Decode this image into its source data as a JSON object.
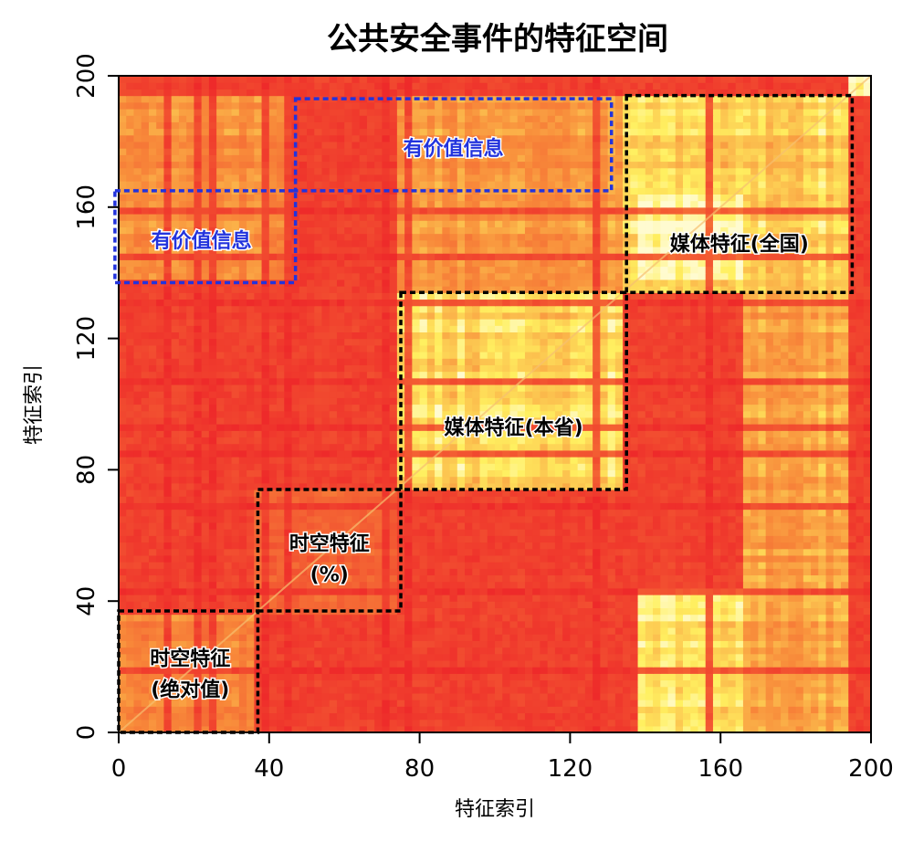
{
  "chart_data": {
    "type": "heatmap",
    "title": "公共安全事件的特征空间",
    "xlabel": "特征索引",
    "ylabel": "特征索引",
    "xlim": [
      0,
      200
    ],
    "ylim": [
      0,
      200
    ],
    "x_ticks": [
      0,
      40,
      80,
      120,
      160,
      200
    ],
    "y_ticks": [
      0,
      40,
      80,
      120,
      160,
      200
    ],
    "x_tick_labels": [
      "0",
      "40",
      "80",
      "120",
      "160",
      "200"
    ],
    "y_tick_labels": [
      "0",
      "40",
      "80",
      "120",
      "160",
      "200"
    ],
    "colors": {
      "low": "#ee2a2a",
      "mid": "#f88a3a",
      "high": "#fff060",
      "top": "#fffbd0",
      "black_box": "#000000",
      "blue_box": "#2233dd"
    },
    "regions": [
      {
        "x0": 0,
        "x1": 37,
        "y0": 0,
        "y1": 37,
        "level": 0.45
      },
      {
        "x0": 37,
        "x1": 74,
        "y0": 37,
        "y1": 74,
        "level": 0.3
      },
      {
        "x0": 74,
        "x1": 135,
        "y0": 74,
        "y1": 135,
        "level": 0.78
      },
      {
        "x0": 135,
        "x1": 195,
        "y0": 135,
        "y1": 195,
        "level": 0.75
      },
      {
        "x0": 138,
        "x1": 166,
        "y0": 138,
        "y1": 165,
        "level": 0.95
      },
      {
        "x0": 138,
        "x1": 166,
        "y0": 0,
        "y1": 45,
        "level": 0.8
      },
      {
        "x0": 166,
        "x1": 195,
        "y0": 0,
        "y1": 135,
        "level": 0.6
      },
      {
        "x0": 74,
        "x1": 135,
        "y0": 135,
        "y1": 195,
        "level": 0.55
      },
      {
        "x0": 0,
        "x1": 47,
        "y0": 138,
        "y1": 195,
        "level": 0.5
      },
      {
        "x0": 195,
        "x1": 200,
        "y0": 195,
        "y1": 200,
        "level": 1.0
      }
    ],
    "blocks": [
      {
        "x0": 0,
        "x1": 37,
        "y0": 0,
        "y1": 37,
        "style": "black",
        "label_lines": [
          "时空特征",
          "(绝对值)"
        ],
        "lx": 19,
        "ly": 18
      },
      {
        "x0": 37,
        "x1": 75,
        "y0": 37,
        "y1": 74,
        "style": "black",
        "label_lines": [
          "时空特征",
          "(%)"
        ],
        "lx": 56,
        "ly": 53
      },
      {
        "x0": 75,
        "x1": 135,
        "y0": 74,
        "y1": 134,
        "style": "black",
        "label_lines": [
          "媒体特征(本省)"
        ],
        "lx": 105,
        "ly": 93
      },
      {
        "x0": 135,
        "x1": 195,
        "y0": 134,
        "y1": 194,
        "style": "black",
        "label_lines": [
          "媒体特征(全国)"
        ],
        "lx": 165,
        "ly": 149
      },
      {
        "x0": 47,
        "x1": 131,
        "y0": 165,
        "y1": 193,
        "style": "blue",
        "label_lines": [
          "有价值信息"
        ],
        "lx": 89,
        "ly": 178
      },
      {
        "x0": -1,
        "x1": 47,
        "y0": 137,
        "y1": 165,
        "style": "blue",
        "label_lines": [
          "有价值信息"
        ],
        "lx": 22,
        "ly": 150
      }
    ]
  }
}
